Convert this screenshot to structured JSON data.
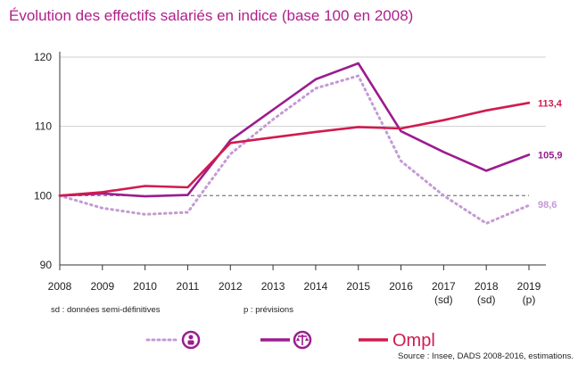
{
  "chart_data": {
    "type": "line",
    "title": "Évolution des effectifs salariés en indice (base 100 en 2008)",
    "x": [
      "2008",
      "2009",
      "2010",
      "2011",
      "2012",
      "2013",
      "2014",
      "2015",
      "2016",
      "2017",
      "2018",
      "2019"
    ],
    "x_sublabels": [
      "",
      "",
      "",
      "",
      "",
      "",
      "",
      "",
      "",
      "(sd)",
      "(sd)",
      "(p)"
    ],
    "ylim": [
      90,
      120
    ],
    "yticks": [
      90,
      100,
      110,
      120
    ],
    "reference_line": 100,
    "series": [
      {
        "style": "dotted",
        "color": "#c49ad4",
        "values": [
          100,
          98.2,
          97.3,
          97.6,
          106,
          111,
          115.5,
          117.3,
          105,
          100,
          96,
          98.6
        ],
        "end_label": "98,6",
        "legend_icon": "person-badge-icon"
      },
      {
        "style": "solid",
        "color": "#9b1c8e",
        "values": [
          100,
          100.3,
          99.9,
          100.1,
          108,
          112.4,
          116.8,
          119.1,
          109.3,
          106.3,
          103.6,
          105.9
        ],
        "end_label": "105,9",
        "legend_icon": "scales-badge-icon"
      },
      {
        "style": "solid",
        "color": "#d01b4f",
        "values": [
          100,
          100.5,
          101.4,
          101.2,
          107.6,
          108.4,
          109.2,
          109.9,
          109.7,
          110.9,
          112.3,
          113.4
        ],
        "end_label": "113,4",
        "legend_icon": "ompl-logo"
      }
    ],
    "notes": {
      "sd": "sd : données semi-définitives",
      "p": "p : prévisions"
    },
    "source": "Source : Insee, DADS 2008-2016, estimations.",
    "logo_text": "Ompl"
  }
}
